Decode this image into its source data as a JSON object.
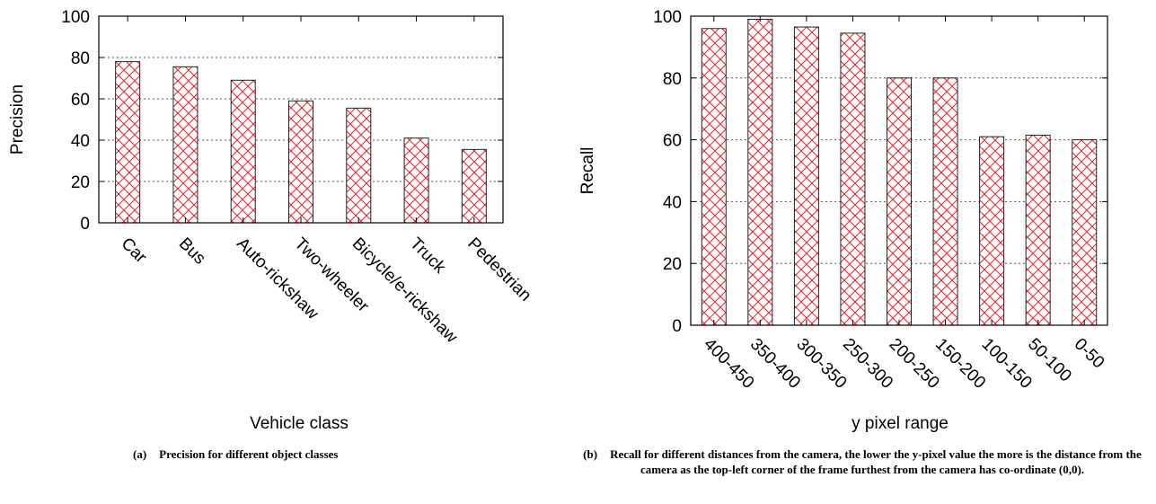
{
  "figures": [
    {
      "caption_tag": "(a)",
      "caption": "Precision for different object classes",
      "chart_data": {
        "type": "bar",
        "categories": [
          "Car",
          "Bus",
          "Auto-rickshaw",
          "Two-wheeler",
          "Bicycle/e-rickshaw",
          "Truck",
          "Pedestrian"
        ],
        "values": [
          78,
          75.5,
          69,
          59,
          55.5,
          41,
          35.5
        ],
        "xlabel": "Vehicle class",
        "ylabel": "Precision",
        "ylim": [
          0,
          100
        ],
        "yticks": [
          "0",
          "20",
          "40",
          "60",
          "80",
          "100"
        ],
        "grid": "dotted horizontal",
        "bar_fill": "red crosshatch",
        "color": "#e8232a"
      }
    },
    {
      "caption_tag": "(b)",
      "caption": "Recall for different distances from the camera, the lower the y-pixel value the more is the distance from the camera as the top-left corner of the frame furthest from the camera has co-ordinate (0,0).",
      "chart_data": {
        "type": "bar",
        "categories": [
          "400-450",
          "350-400",
          "300-350",
          "250-300",
          "200-250",
          "150-200",
          "100-150",
          "50-100",
          "0-50"
        ],
        "values": [
          96,
          99,
          96.5,
          94.5,
          80,
          80,
          61,
          61.5,
          60
        ],
        "xlabel": "y pixel range",
        "ylabel": "Recall",
        "ylim": [
          0,
          100
        ],
        "yticks": [
          "0",
          "20",
          "40",
          "60",
          "80",
          "100"
        ],
        "grid": "dotted horizontal",
        "bar_fill": "red crosshatch",
        "color": "#e8232a"
      }
    }
  ]
}
